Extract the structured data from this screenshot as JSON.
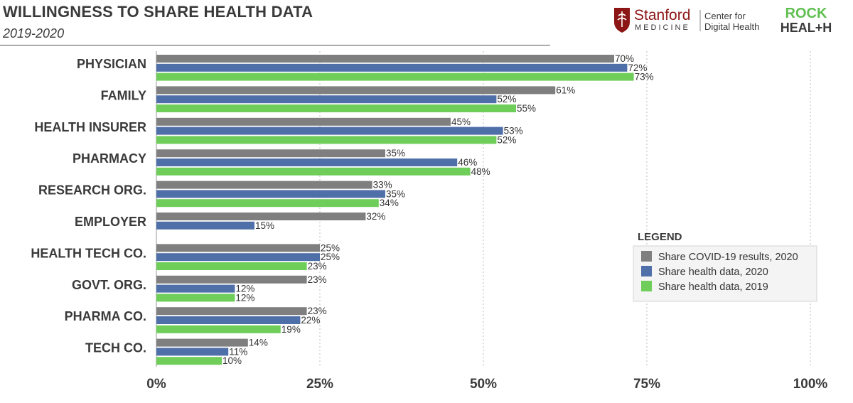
{
  "header": {
    "title": "WILLINGNESS TO SHARE HEALTH DATA",
    "subtitle": "2019-2020"
  },
  "logos": {
    "stanford_name": "Stanford",
    "stanford_sub": "MEDICINE",
    "center_line1": "Center for",
    "center_line2": "Digital Health",
    "rock_line1": "ROCK",
    "rock_line2": "HEAL+H"
  },
  "legend_title": "LEGEND",
  "colors": {
    "covid": "#7f7f7f",
    "data2020": "#4f6fa8",
    "data2019": "#6fce5a",
    "rock_green": "#5fbf4f",
    "stanford_red": "#8c1515"
  },
  "chart_data": {
    "type": "bar",
    "orientation": "horizontal",
    "categories": [
      "PHYSICIAN",
      "FAMILY",
      "HEALTH INSURER",
      "PHARMACY",
      "RESEARCH ORG.",
      "EMPLOYER",
      "HEALTH TECH CO.",
      "GOVT. ORG.",
      "PHARMA CO.",
      "TECH CO."
    ],
    "series": [
      {
        "name": "Share COVID-19 results, 2020",
        "values": [
          70,
          61,
          45,
          35,
          33,
          32,
          25,
          23,
          23,
          14
        ]
      },
      {
        "name": "Share health data, 2020",
        "values": [
          72,
          52,
          53,
          46,
          35,
          15,
          25,
          12,
          22,
          11
        ]
      },
      {
        "name": "Share health data, 2019",
        "values": [
          73,
          55,
          52,
          48,
          34,
          null,
          23,
          12,
          19,
          10
        ]
      }
    ],
    "value_suffix": "%",
    "xlim": [
      0,
      100
    ],
    "xticks": [
      "0%",
      "25%",
      "50%",
      "75%",
      "100%"
    ],
    "tick_values": [
      0,
      25,
      50,
      75,
      100
    ],
    "grid": "vertical dashed",
    "legend_position": "right"
  }
}
